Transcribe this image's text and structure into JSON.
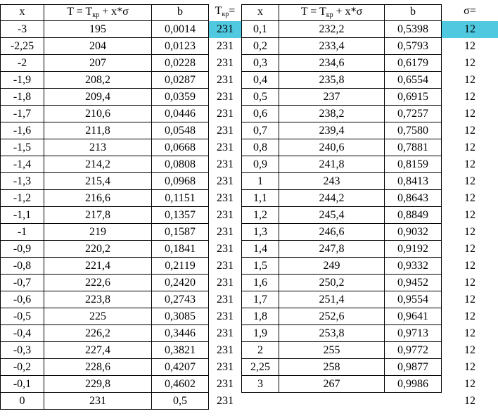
{
  "headers": {
    "x1": "x",
    "formula1": {
      "t": "T = T",
      "sub": "кр",
      "tail": " + x*σ"
    },
    "b1": "b",
    "tkr": {
      "t": "T",
      "sub": "кр",
      "tail": "="
    },
    "x2": "x",
    "formula2": {
      "t": "T = T",
      "sub": "кр",
      "tail": " + x*σ"
    },
    "b2": "b",
    "sigma": "σ="
  },
  "highlight_color": "#4fc8e0",
  "left_rows": [
    [
      "-3",
      "195",
      "0,0014",
      "231"
    ],
    [
      "-2,25",
      "204",
      "0,0123",
      "231"
    ],
    [
      "-2",
      "207",
      "0,0228",
      "231"
    ],
    [
      "-1,9",
      "208,2",
      "0,0287",
      "231"
    ],
    [
      "-1,8",
      "209,4",
      "0,0359",
      "231"
    ],
    [
      "-1,7",
      "210,6",
      "0,0446",
      "231"
    ],
    [
      "-1,6",
      "211,8",
      "0,0548",
      "231"
    ],
    [
      "-1,5",
      "213",
      "0,0668",
      "231"
    ],
    [
      "-1,4",
      "214,2",
      "0,0808",
      "231"
    ],
    [
      "-1,3",
      "215,4",
      "0,0968",
      "231"
    ],
    [
      "-1,2",
      "216,6",
      "0,1151",
      "231"
    ],
    [
      "-1,1",
      "217,8",
      "0,1357",
      "231"
    ],
    [
      "-1",
      "219",
      "0,1587",
      "231"
    ],
    [
      "-0,9",
      "220,2",
      "0,1841",
      "231"
    ],
    [
      "-0,8",
      "221,4",
      "0,2119",
      "231"
    ],
    [
      "-0,7",
      "222,6",
      "0,2420",
      "231"
    ],
    [
      "-0,6",
      "223,8",
      "0,2743",
      "231"
    ],
    [
      "-0,5",
      "225",
      "0,3085",
      "231"
    ],
    [
      "-0,4",
      "226,2",
      "0,3446",
      "231"
    ],
    [
      "-0,3",
      "227,4",
      "0,3821",
      "231"
    ],
    [
      "-0,2",
      "228,6",
      "0,4207",
      "231"
    ],
    [
      "-0,1",
      "229,8",
      "0,4602",
      "231"
    ],
    [
      "0",
      "231",
      "0,5",
      "231"
    ]
  ],
  "right_rows": [
    [
      "0,1",
      "232,2",
      "0,5398",
      "12"
    ],
    [
      "0,2",
      "233,4",
      "0,5793",
      "12"
    ],
    [
      "0,3",
      "234,6",
      "0,6179",
      "12"
    ],
    [
      "0,4",
      "235,8",
      "0,6554",
      "12"
    ],
    [
      "0,5",
      "237",
      "0,6915",
      "12"
    ],
    [
      "0,6",
      "238,2",
      "0,7257",
      "12"
    ],
    [
      "0,7",
      "239,4",
      "0,7580",
      "12"
    ],
    [
      "0,8",
      "240,6",
      "0,7881",
      "12"
    ],
    [
      "0,9",
      "241,8",
      "0,8159",
      "12"
    ],
    [
      "1",
      "243",
      "0,8413",
      "12"
    ],
    [
      "1,1",
      "244,2",
      "0,8643",
      "12"
    ],
    [
      "1,2",
      "245,4",
      "0,8849",
      "12"
    ],
    [
      "1,3",
      "246,6",
      "0,9032",
      "12"
    ],
    [
      "1,4",
      "247,8",
      "0,9192",
      "12"
    ],
    [
      "1,5",
      "249",
      "0,9332",
      "12"
    ],
    [
      "1,6",
      "250,2",
      "0,9452",
      "12"
    ],
    [
      "1,7",
      "251,4",
      "0,9554",
      "12"
    ],
    [
      "1,8",
      "252,6",
      "0,9641",
      "12"
    ],
    [
      "1,9",
      "253,8",
      "0,9713",
      "12"
    ],
    [
      "2",
      "255",
      "0,9772",
      "12"
    ],
    [
      "2,25",
      "258",
      "0,9877",
      "12"
    ],
    [
      "3",
      "267",
      "0,9986",
      "12"
    ],
    [
      "",
      "",
      "",
      "12"
    ]
  ]
}
